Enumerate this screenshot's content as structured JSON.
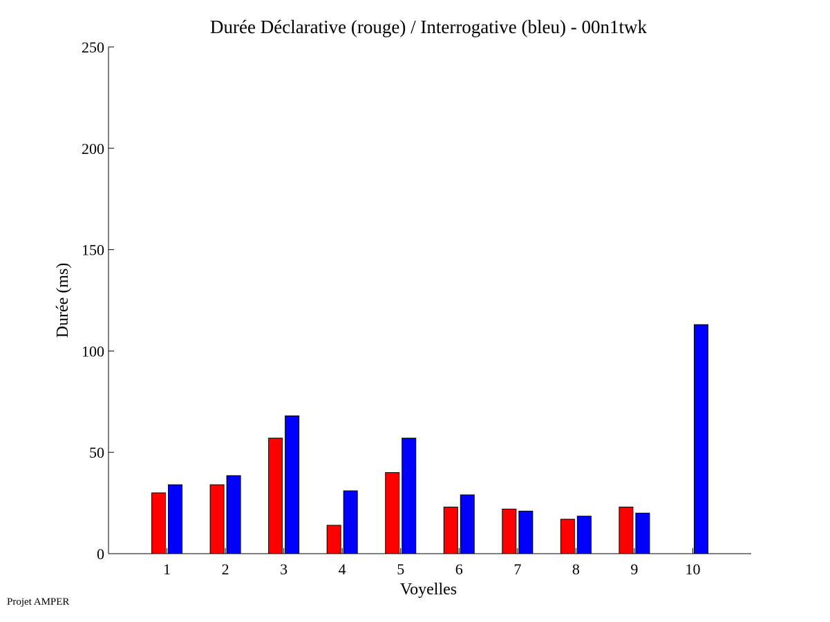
{
  "chart_data": {
    "type": "bar",
    "title": "Durée Déclarative (rouge) / Interrogative (bleu) - 00n1twk",
    "xlabel": "Voyelles",
    "ylabel": "Durée (ms)",
    "ylim": [
      0,
      250
    ],
    "yticks": [
      0,
      50,
      100,
      150,
      200,
      250
    ],
    "categories": [
      "1",
      "2",
      "3",
      "4",
      "5",
      "6",
      "7",
      "8",
      "9",
      "10"
    ],
    "series": [
      {
        "color": "#ff0000",
        "values": [
          30,
          34,
          57,
          14,
          40,
          23,
          22,
          17,
          23,
          0
        ]
      },
      {
        "color": "#0000ff",
        "values": [
          34,
          38.5,
          68,
          31,
          57,
          29,
          21,
          18.5,
          20,
          113
        ]
      }
    ],
    "grid": false,
    "legend": "none"
  },
  "footer": {
    "text": "Projet AMPER"
  }
}
